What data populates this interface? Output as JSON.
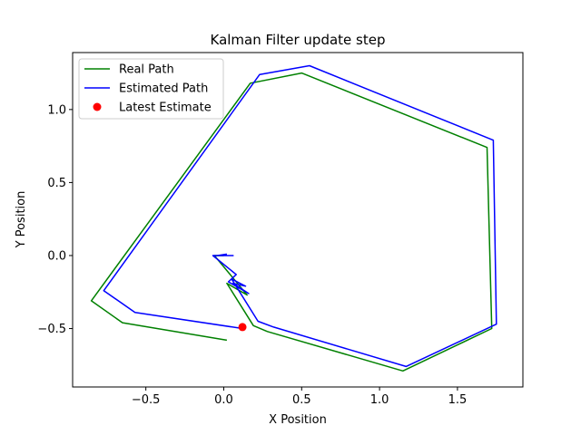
{
  "chart_data": {
    "type": "line",
    "title": "Kalman Filter update step",
    "xlabel": "X Position",
    "ylabel": "Y Position",
    "xlim": [
      -0.97,
      1.92
    ],
    "ylim": [
      -0.9,
      1.39
    ],
    "xticks": [
      -0.5,
      0.0,
      0.5,
      1.0,
      1.5
    ],
    "xtick_labels": [
      "−0.5",
      "0.0",
      "0.5",
      "1.0",
      "1.5"
    ],
    "yticks": [
      -0.5,
      0.0,
      0.5,
      1.0
    ],
    "ytick_labels": [
      "−0.5",
      "0.0",
      "0.5",
      "1.0"
    ],
    "grid": false,
    "legend_position": "upper-left",
    "series": [
      {
        "name": "Real Path",
        "color": "#008000",
        "marker": "line",
        "points": [
          [
            0.02,
            -0.58
          ],
          [
            -0.65,
            -0.46
          ],
          [
            -0.85,
            -0.31
          ],
          [
            0.17,
            1.18
          ],
          [
            0.5,
            1.25
          ],
          [
            1.69,
            0.74
          ],
          [
            1.72,
            -0.5
          ],
          [
            1.15,
            -0.79
          ],
          [
            0.28,
            -0.52
          ],
          [
            0.19,
            -0.48
          ],
          [
            0.02,
            -0.19
          ],
          [
            0.15,
            -0.27
          ],
          [
            -0.06,
            0.0
          ],
          [
            0.0,
            0.0
          ]
        ]
      },
      {
        "name": "Estimated Path",
        "color": "#0000ff",
        "marker": "line",
        "points": [
          [
            0.12,
            -0.5
          ],
          [
            -0.57,
            -0.39
          ],
          [
            -0.77,
            -0.24
          ],
          [
            0.23,
            1.24
          ],
          [
            0.55,
            1.3
          ],
          [
            1.73,
            0.79
          ],
          [
            1.75,
            -0.47
          ],
          [
            1.17,
            -0.76
          ],
          [
            0.32,
            -0.49
          ],
          [
            0.22,
            -0.45
          ],
          [
            0.05,
            -0.16
          ],
          [
            0.14,
            -0.21
          ],
          [
            0.06,
            -0.19
          ],
          [
            0.16,
            -0.26
          ],
          [
            0.03,
            -0.18
          ],
          [
            0.08,
            -0.13
          ],
          [
            -0.07,
            0.0
          ],
          [
            0.06,
            0.0
          ],
          [
            -0.04,
            0.0
          ],
          [
            0.02,
            0.01
          ]
        ]
      },
      {
        "name": "Latest Estimate",
        "color": "#ff0000",
        "marker": "dot",
        "points": [
          [
            0.12,
            -0.49
          ]
        ]
      }
    ]
  }
}
